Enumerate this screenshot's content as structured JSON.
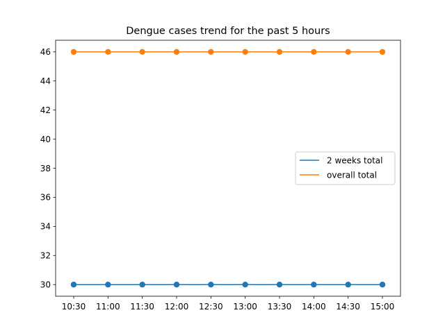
{
  "chart_data": {
    "type": "line",
    "title": "Dengue cases trend for the past 5 hours",
    "xlabel": "",
    "ylabel": "",
    "categories": [
      "10:30",
      "11:00",
      "11:30",
      "12:00",
      "12:30",
      "13:00",
      "13:30",
      "14:00",
      "14:30",
      "15:00"
    ],
    "ylim": [
      29.2,
      46.8
    ],
    "yticks": [
      30,
      32,
      34,
      36,
      38,
      40,
      42,
      44,
      46
    ],
    "grid": false,
    "legend_position": "center-right",
    "markers": true,
    "series": [
      {
        "name": "2 weeks total",
        "color": "#1f77b4",
        "values": [
          30,
          30,
          30,
          30,
          30,
          30,
          30,
          30,
          30,
          30
        ]
      },
      {
        "name": "overall total",
        "color": "#ff7f0e",
        "values": [
          46,
          46,
          46,
          46,
          46,
          46,
          46,
          46,
          46,
          46
        ]
      }
    ]
  }
}
